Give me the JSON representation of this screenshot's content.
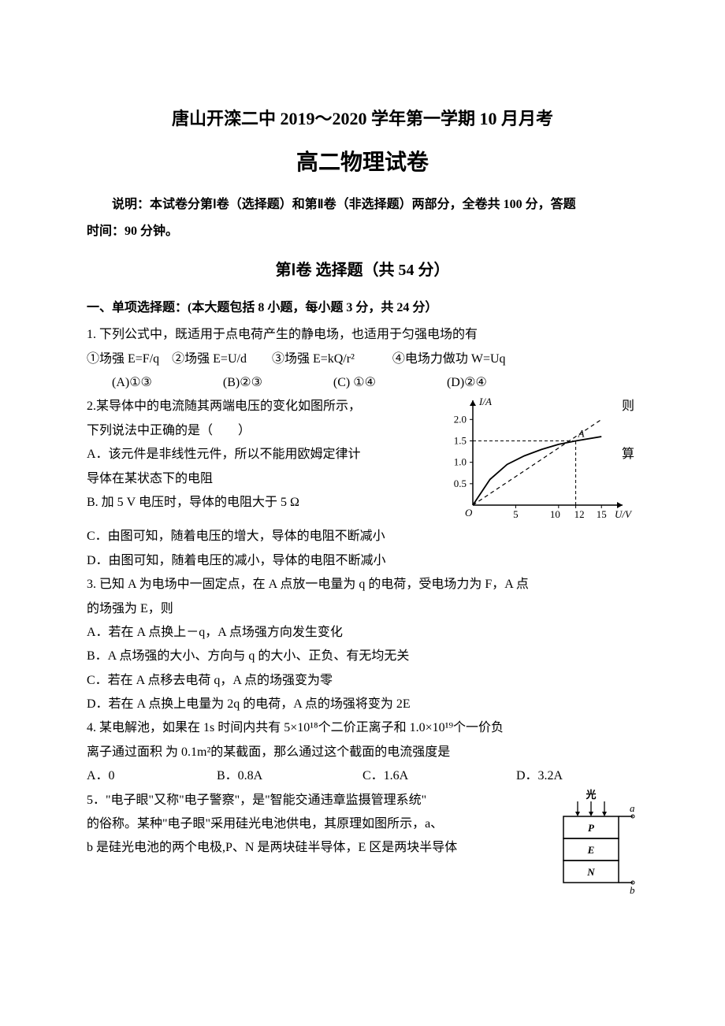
{
  "header": {
    "title1": "唐山开滦二中 2019～2020 学年第一学期 10 月月考",
    "title2": "高二物理试卷",
    "instructions": "说明：本试卷分第Ⅰ卷（选择题）和第Ⅱ卷（非选择题）两部分，全卷共 100 分，答题",
    "instructions2": "时间：90 分钟。",
    "section": "第Ⅰ卷 选择题（共 54 分）",
    "sub": "一、单项选择题：(本大题包括 8 小题，每小题 3 分，共 24 分）"
  },
  "q1": {
    "text": "1. 下列公式中，既适用于点电荷产生的静电场，也适用于匀强电场的有",
    "formulas": "①场强 E=F/q　②场强 E=U/d　　③场强 E=kQ/r²　　　④电场力做功 W=Uq",
    "optA": "(A)①③",
    "optB": "(B)②③",
    "optC": "(C) ①④",
    "optD": "(D)②④"
  },
  "q2": {
    "line1a": "2.某导体中的电流随其两端电压的变化如图所示，",
    "line1b": "则",
    "line2": "下列说法中正确的是（　　）",
    "line3a": "A．该元件是非线性元件，所以不能用欧姆定律计",
    "line3b": "算",
    "line4": "导体在某状态下的电阻",
    "optB": "B. 加 5 V 电压时，导体的电阻大于 5 Ω",
    "optC": "C．由图可知，随着电压的增大，导体的电阻不断减小",
    "optD": "D．由图可知，随着电压的减小，导体的电阻不断减小"
  },
  "chart": {
    "type": "line",
    "ylabel": "I/A",
    "xlabel": "U/V",
    "point_label": "A",
    "yticks": [
      "0.5",
      "1.0",
      "1.5",
      "2.0"
    ],
    "ytick_vals": [
      0.5,
      1.0,
      1.5,
      2.0
    ],
    "xticks": [
      "5",
      "10",
      "12",
      "15"
    ],
    "xtick_vals": [
      5,
      10,
      12,
      15
    ],
    "origin_label": "O",
    "curve_points": [
      [
        0,
        0
      ],
      [
        2,
        0.6
      ],
      [
        4,
        0.95
      ],
      [
        6,
        1.15
      ],
      [
        8,
        1.3
      ],
      [
        10,
        1.42
      ],
      [
        12,
        1.5
      ],
      [
        15,
        1.6
      ]
    ],
    "dashed_line_points": [
      [
        0,
        0
      ],
      [
        15,
        2.0
      ]
    ],
    "vertical_dash_x": 12,
    "vertical_dash_y": 1.5,
    "horizontal_dash_y": 1.5,
    "axis_color": "#000000",
    "line_color": "#000000",
    "background_color": "#ffffff",
    "xlim": [
      0,
      17
    ],
    "ylim": [
      0,
      2.3
    ]
  },
  "q3": {
    "line1": "3. 已知 A 为电场中一固定点，在 A 点放一电量为 q 的电荷，受电场力为 F，A 点",
    "line2": "的场强为 E，则",
    "optA": "A．若在 A 点换上－q，A 点场强方向发生变化",
    "optB": "B．A 点场强的大小、方向与 q 的大小、正负、有无均无关",
    "optC": "C．若在 A 点移去电荷 q，A 点的场强变为零",
    "optD": "D．若在 A 点换上电量为 2q 的电荷，A 点的场强将变为 2E"
  },
  "q4": {
    "line1": "4. 某电解池，如果在 1s 时间内共有 5×10¹⁸个二价正离子和 1.0×10¹⁹个一价负",
    "line2": "离子通过面积 为 0.1m²的某截面，那么通过这个截面的电流强度是",
    "optA": "A．0",
    "optB": "B．0.8A",
    "optC": "C．1.6A",
    "optD": "D．3.2A"
  },
  "q5": {
    "line1": "5．\"电子眼\"又称\"电子警察\"，是\"智能交通违章监摄管理系统\"",
    "line2": "的俗称。某种\"电子眼\"采用硅光电池供电，其原理如图所示，a、",
    "line3": "b 是硅光电池的两个电极,P、N 是两块硅半导体，E 区是两块半导体"
  },
  "diagram": {
    "type": "schematic",
    "labels": {
      "light": "光",
      "a": "a",
      "b": "b",
      "P": "P",
      "E": "E",
      "N": "N"
    },
    "box_color": "#000000",
    "background_color": "#ffffff",
    "line_width": 1.5
  }
}
